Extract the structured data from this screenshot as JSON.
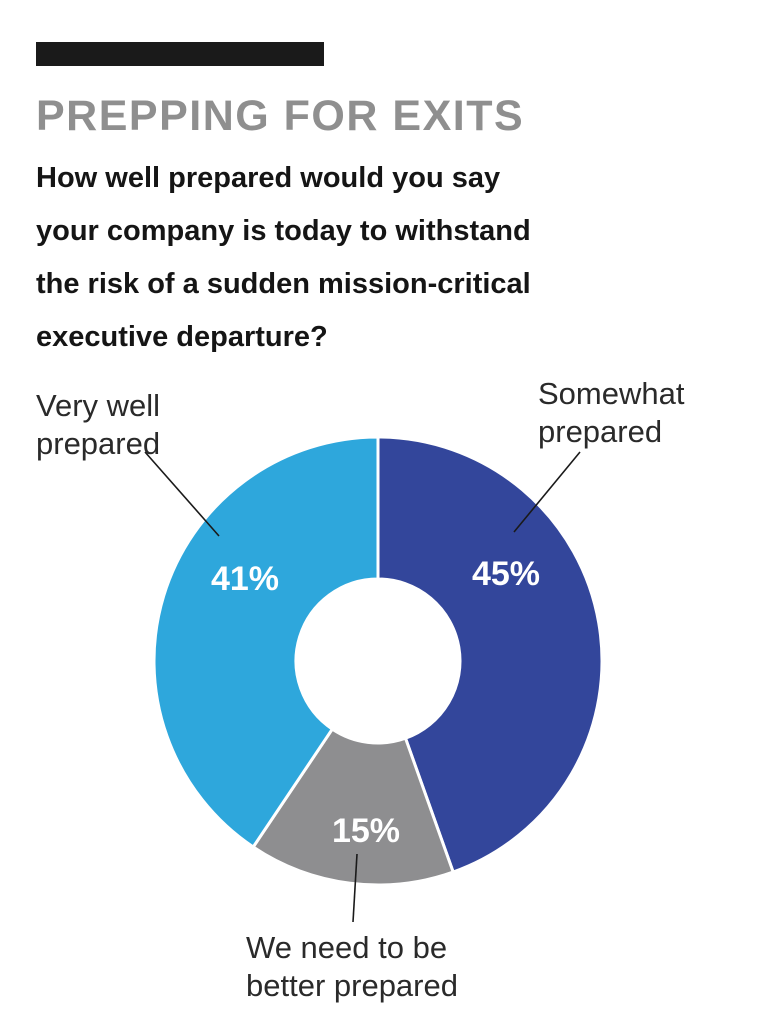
{
  "header": {
    "title": "PREPPING FOR EXITS",
    "question_lines": [
      "How well prepared would you say",
      "your company is today to withstand",
      "the risk of a sudden mission-critical",
      "executive departure?"
    ]
  },
  "chart_data": {
    "type": "pie",
    "donut": true,
    "title": "PREPPING FOR EXITS",
    "subtitle": "How well prepared would you say your company is today to withstand the risk of a sudden mission-critical executive departure?",
    "unit": "%",
    "slices": [
      {
        "name": "Somewhat prepared",
        "label_lines": [
          "Somewhat",
          "prepared"
        ],
        "value": 45,
        "value_label": "45%",
        "color": "#33469b"
      },
      {
        "name": "We need to be better prepared",
        "label_lines": [
          "We need to be",
          "better prepared"
        ],
        "value": 15,
        "value_label": "15%",
        "color": "#8e8e90"
      },
      {
        "name": "Very well prepared",
        "label_lines": [
          "Very well",
          "prepared"
        ],
        "value": 41,
        "value_label": "41%",
        "color": "#2ea7dc"
      }
    ]
  },
  "colors": {
    "bar": "#1a1a1a",
    "title": "#8f8f8f",
    "text": "#151515",
    "separator": "#ffffff"
  }
}
